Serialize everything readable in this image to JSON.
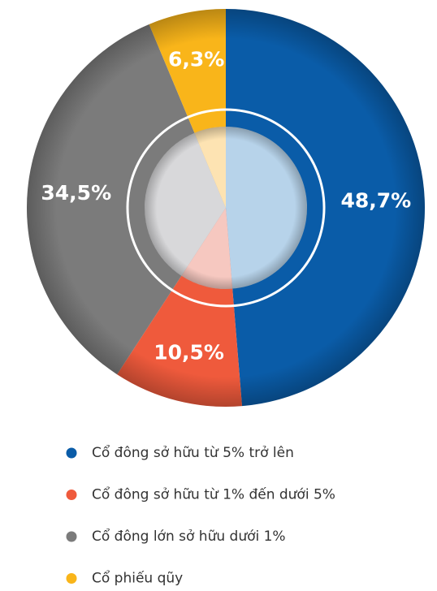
{
  "chart_data": {
    "type": "donut",
    "categories": [
      "Cổ đông sở hữu từ 5% trở lên",
      "Cổ đông sở hữu từ 1% đến dưới 5%",
      "Cổ đông lớn sở hữu dưới 1%",
      "Cổ phiếu qũy"
    ],
    "values": [
      48.7,
      10.5,
      34.5,
      6.3
    ],
    "value_labels": [
      "48,7%",
      "10,5%",
      "34,5%",
      "6,3%"
    ],
    "colors": [
      "#0a5ca8",
      "#ef5a3c",
      "#7b7b7b",
      "#f9b51a"
    ],
    "inner_colors": [
      "#b7d3ea",
      "#f6c8c0",
      "#d8d8da",
      "#fde3b2"
    ],
    "legend": "bottom"
  }
}
